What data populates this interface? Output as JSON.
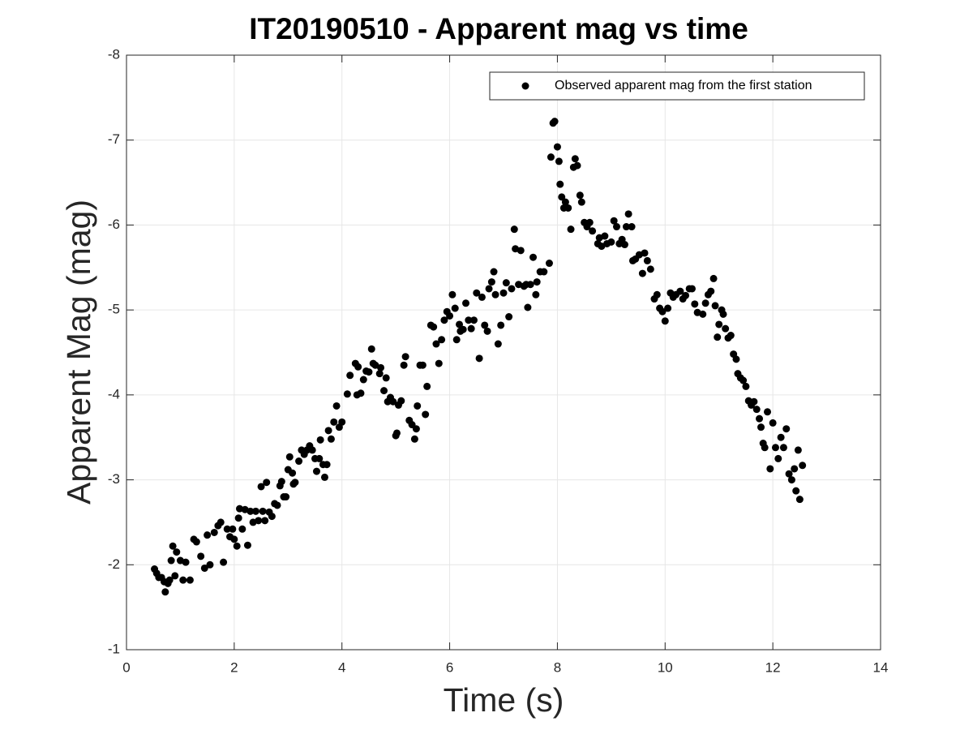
{
  "chart_data": {
    "type": "scatter",
    "title": "IT20190510 - Apparent mag vs time",
    "xlabel": "Time (s)",
    "ylabel": "Apparent Mag (mag)",
    "xlim": [
      0,
      14
    ],
    "xticks": [
      0,
      2,
      4,
      6,
      8,
      10,
      12,
      14
    ],
    "ylim": [
      -8,
      -1
    ],
    "yticks": [
      -8,
      -7,
      -6,
      -5,
      -4,
      -3,
      -2,
      -1
    ],
    "y_reversed": true,
    "grid": true,
    "legend": "northeast",
    "x": [
      0.52,
      0.56,
      0.6,
      0.65,
      0.7,
      0.72,
      0.77,
      0.8,
      0.83,
      0.86,
      0.9,
      0.93,
      1.0,
      1.05,
      1.1,
      1.18,
      1.25,
      1.3,
      1.38,
      1.45,
      1.5,
      1.55,
      1.63,
      1.7,
      1.75,
      1.8,
      1.87,
      1.92,
      1.97,
      2.0,
      2.05,
      2.08,
      2.1,
      2.15,
      2.2,
      2.25,
      2.3,
      2.35,
      2.4,
      2.45,
      2.5,
      2.53,
      2.57,
      2.6,
      2.65,
      2.7,
      2.75,
      2.8,
      2.85,
      2.88,
      2.92,
      2.96,
      3.0,
      3.03,
      3.08,
      3.1,
      3.13,
      3.2,
      3.25,
      3.3,
      3.35,
      3.4,
      3.45,
      3.5,
      3.53,
      3.58,
      3.6,
      3.65,
      3.68,
      3.72,
      3.75,
      3.8,
      3.85,
      3.9,
      3.95,
      4.0,
      4.1,
      4.15,
      4.25,
      4.28,
      4.3,
      4.35,
      4.4,
      4.45,
      4.5,
      4.55,
      4.58,
      4.62,
      4.7,
      4.72,
      4.78,
      4.82,
      4.85,
      4.9,
      4.95,
      5.0,
      5.02,
      5.05,
      5.1,
      5.15,
      5.18,
      5.25,
      5.3,
      5.35,
      5.38,
      5.4,
      5.45,
      5.5,
      5.55,
      5.58,
      5.65,
      5.7,
      5.75,
      5.8,
      5.85,
      5.9,
      5.95,
      6.0,
      6.05,
      6.1,
      6.13,
      6.18,
      6.2,
      6.25,
      6.3,
      6.35,
      6.4,
      6.45,
      6.5,
      6.55,
      6.6,
      6.65,
      6.7,
      6.73,
      6.78,
      6.82,
      6.85,
      6.9,
      6.95,
      7.0,
      7.05,
      7.1,
      7.15,
      7.2,
      7.22,
      7.28,
      7.32,
      7.38,
      7.42,
      7.45,
      7.5,
      7.55,
      7.6,
      7.62,
      7.68,
      7.75,
      7.85,
      7.88,
      7.92,
      7.95,
      8.0,
      8.03,
      8.05,
      8.08,
      8.12,
      8.15,
      8.2,
      8.25,
      8.3,
      8.33,
      8.37,
      8.42,
      8.45,
      8.5,
      8.55,
      8.6,
      8.65,
      8.75,
      8.78,
      8.82,
      8.88,
      8.92,
      9.0,
      9.05,
      9.1,
      9.15,
      9.2,
      9.25,
      9.28,
      9.32,
      9.38,
      9.4,
      9.45,
      9.52,
      9.58,
      9.62,
      9.67,
      9.73,
      9.8,
      9.85,
      9.9,
      9.95,
      10.0,
      10.05,
      10.1,
      10.15,
      10.2,
      10.28,
      10.33,
      10.38,
      10.45,
      10.5,
      10.55,
      10.6,
      10.7,
      10.75,
      10.8,
      10.85,
      10.9,
      10.93,
      10.97,
      11.0,
      11.05,
      11.08,
      11.12,
      11.17,
      11.22,
      11.27,
      11.32,
      11.35,
      11.4,
      11.45,
      11.5,
      11.55,
      11.6,
      11.65,
      11.7,
      11.75,
      11.78,
      11.82,
      11.85,
      11.9,
      11.95,
      12.0,
      12.05,
      12.1,
      12.15,
      12.2,
      12.25,
      12.3,
      12.35,
      12.4,
      12.43,
      12.47,
      12.5,
      12.55
    ],
    "series": [
      {
        "name": "Observed apparent mag from the first station",
        "color": "#000000",
        "values": [
          -1.95,
          -1.9,
          -1.85,
          -1.85,
          -1.8,
          -1.68,
          -1.78,
          -1.82,
          -2.05,
          -2.22,
          -1.87,
          -2.15,
          -2.05,
          -1.82,
          -2.03,
          -1.82,
          -2.3,
          -2.27,
          -2.1,
          -1.96,
          -2.35,
          -2.0,
          -2.38,
          -2.46,
          -2.5,
          -2.03,
          -2.42,
          -2.33,
          -2.42,
          -2.3,
          -2.22,
          -2.55,
          -2.66,
          -2.42,
          -2.65,
          -2.23,
          -2.63,
          -2.5,
          -2.63,
          -2.52,
          -2.92,
          -2.63,
          -2.52,
          -2.97,
          -2.62,
          -2.57,
          -2.72,
          -2.7,
          -2.93,
          -2.98,
          -2.8,
          -2.8,
          -3.12,
          -3.27,
          -3.08,
          -2.95,
          -2.97,
          -3.22,
          -3.35,
          -3.3,
          -3.35,
          -3.4,
          -3.35,
          -3.25,
          -3.1,
          -3.25,
          -3.47,
          -3.18,
          -3.03,
          -3.18,
          -3.58,
          -3.48,
          -3.68,
          -3.87,
          -3.62,
          -3.68,
          -4.01,
          -4.23,
          -4.37,
          -4.0,
          -4.33,
          -4.02,
          -4.18,
          -4.28,
          -4.27,
          -4.54,
          -4.37,
          -4.35,
          -4.25,
          -4.32,
          -4.05,
          -4.2,
          -3.92,
          -3.97,
          -3.92,
          -3.52,
          -3.55,
          -3.88,
          -3.93,
          -4.35,
          -4.45,
          -3.7,
          -3.65,
          -3.48,
          -3.6,
          -3.87,
          -4.35,
          -4.35,
          -3.77,
          -4.1,
          -4.82,
          -4.8,
          -4.6,
          -4.37,
          -4.65,
          -4.88,
          -4.98,
          -4.93,
          -5.18,
          -5.02,
          -4.65,
          -4.83,
          -4.75,
          -4.77,
          -5.08,
          -4.88,
          -4.78,
          -4.88,
          -5.2,
          -4.43,
          -5.15,
          -4.82,
          -4.75,
          -5.25,
          -5.33,
          -5.45,
          -5.18,
          -4.6,
          -4.82,
          -5.2,
          -5.32,
          -4.92,
          -5.25,
          -5.95,
          -5.72,
          -5.3,
          -5.7,
          -5.28,
          -5.3,
          -5.03,
          -5.3,
          -5.62,
          -5.18,
          -5.33,
          -5.45,
          -5.45,
          -5.55,
          -6.8,
          -7.2,
          -7.22,
          -6.92,
          -6.75,
          -6.48,
          -6.33,
          -6.2,
          -6.27,
          -6.2,
          -5.95,
          -6.68,
          -6.78,
          -6.7,
          -6.35,
          -6.27,
          -6.03,
          -5.98,
          -6.03,
          -5.93,
          -5.78,
          -5.85,
          -5.75,
          -5.87,
          -5.78,
          -5.8,
          -6.05,
          -5.98,
          -5.78,
          -5.83,
          -5.77,
          -5.98,
          -6.13,
          -5.98,
          -5.58,
          -5.6,
          -5.65,
          -5.43,
          -5.67,
          -5.58,
          -5.48,
          -5.13,
          -5.18,
          -5.02,
          -4.98,
          -4.87,
          -5.02,
          -5.2,
          -5.15,
          -5.18,
          -5.22,
          -5.13,
          -5.17,
          -5.25,
          -5.25,
          -5.07,
          -4.97,
          -4.95,
          -5.08,
          -5.18,
          -5.22,
          -5.37,
          -5.05,
          -4.68,
          -4.83,
          -5.0,
          -4.95,
          -4.78,
          -4.67,
          -4.7,
          -4.48,
          -4.42,
          -4.25,
          -4.2,
          -4.17,
          -4.1,
          -3.93,
          -3.88,
          -3.92,
          -3.83,
          -3.72,
          -3.62,
          -3.43,
          -3.38,
          -3.8,
          -3.13,
          -3.67,
          -3.38,
          -3.25,
          -3.5,
          -3.38,
          -3.6,
          -3.07,
          -3.0,
          -3.13,
          -2.87,
          -3.35,
          -2.77,
          -3.17
        ]
      }
    ]
  }
}
